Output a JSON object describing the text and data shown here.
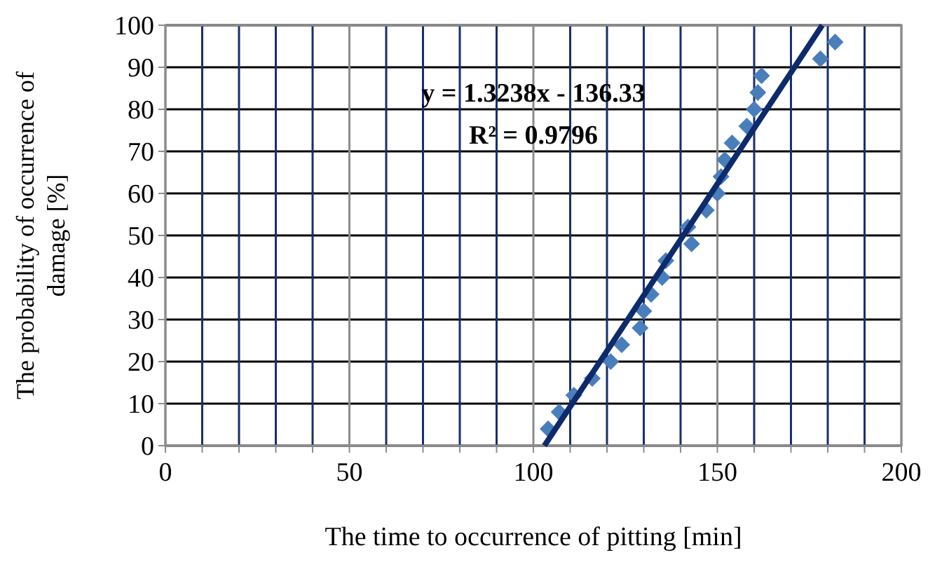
{
  "chart_data": {
    "type": "scatter",
    "xlabel": "The time to occurrence of pitting [min]",
    "ylabel": "The probability of occurrence of damage [%]",
    "xlim": [
      0,
      200
    ],
    "ylim": [
      0,
      100
    ],
    "xticks": [
      0,
      {
        "value": 10,
        "label": null
      },
      {
        "value": 20,
        "label": null
      },
      {
        "value": 30,
        "label": null
      },
      {
        "value": 40,
        "label": null
      },
      50,
      {
        "value": 60,
        "label": null
      },
      {
        "value": 70,
        "label": null
      },
      {
        "value": 80,
        "label": null
      },
      {
        "value": 90,
        "label": null
      },
      100,
      {
        "value": 110,
        "label": null
      },
      {
        "value": 120,
        "label": null
      },
      {
        "value": 130,
        "label": null
      },
      {
        "value": 140,
        "label": null
      },
      150,
      {
        "value": 160,
        "label": null
      },
      {
        "value": 170,
        "label": null
      },
      {
        "value": 180,
        "label": null
      },
      {
        "value": 190,
        "label": null
      },
      200
    ],
    "yticks": [
      0,
      10,
      20,
      30,
      40,
      50,
      60,
      70,
      80,
      90,
      100
    ],
    "grid": true,
    "marker": "diamond",
    "series": [
      {
        "color": "#4a7ebb",
        "x": [
          104,
          107,
          111,
          116,
          121,
          124,
          129,
          130,
          132,
          135,
          136,
          143,
          142,
          147,
          150,
          151,
          152,
          154,
          158,
          160,
          161,
          162,
          178,
          182
        ],
        "values": [
          4,
          8,
          12,
          16,
          20,
          24,
          28,
          32,
          36,
          40,
          44,
          48,
          52,
          56,
          60,
          64,
          68,
          72,
          76,
          80,
          84,
          88,
          92,
          96
        ]
      },
      {
        "type": "line",
        "color": "#0d2a6b",
        "marker": "none",
        "x": [
          103,
          178.5
        ],
        "values": [
          0,
          100
        ]
      }
    ],
    "annotations": [
      "y = 1.3238x - 136.33",
      "R² = 0.9796"
    ]
  }
}
